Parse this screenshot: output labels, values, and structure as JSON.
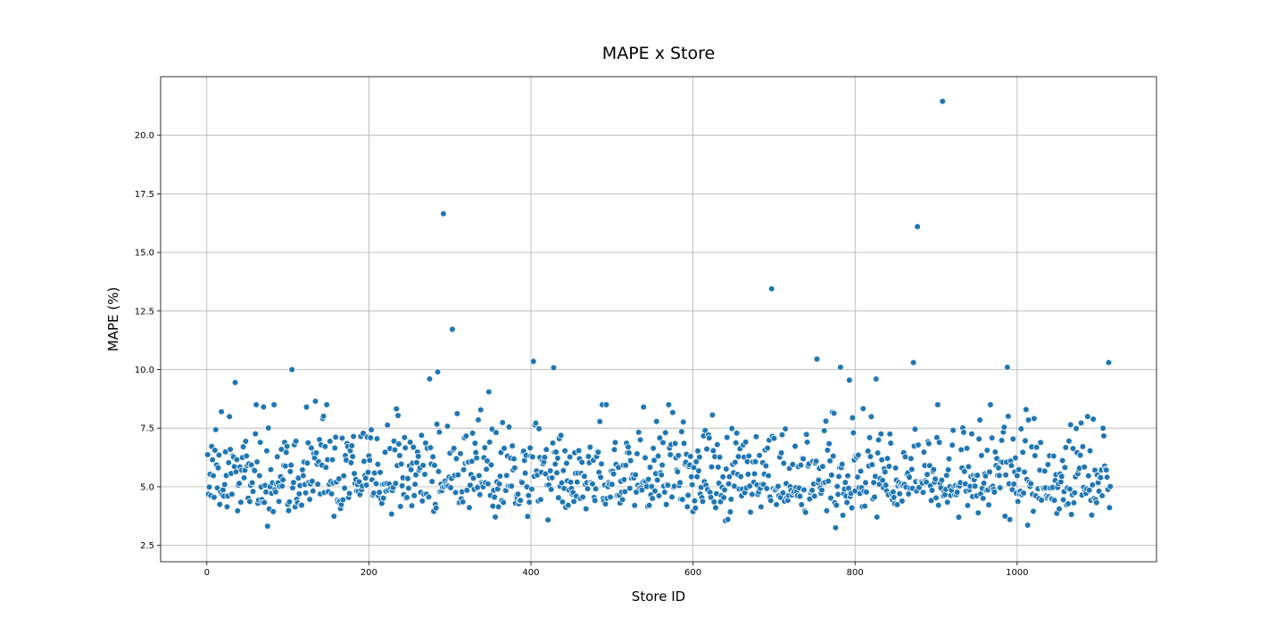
{
  "chart_data": {
    "type": "scatter",
    "title": "MAPE x Store",
    "xlabel": "Store ID",
    "ylabel": "MAPE (%)",
    "xlim": [
      -57,
      1172
    ],
    "ylim": [
      1.8,
      22.5
    ],
    "xticks": [
      0,
      200,
      400,
      600,
      800,
      1000
    ],
    "xtick_labels": [
      "0",
      "200",
      "400",
      "600",
      "800",
      "1000"
    ],
    "yticks": [
      2.5,
      5.0,
      7.5,
      10.0,
      12.5,
      15.0,
      17.5,
      20.0
    ],
    "ytick_labels": [
      "2.5",
      "5.0",
      "7.5",
      "10.0",
      "12.5",
      "15.0",
      "17.5",
      "20.0"
    ],
    "grid": true,
    "point_color": "#1f77b4",
    "n_points": 1115,
    "outliers": {
      "x": [
        292,
        303,
        285,
        275,
        105,
        348,
        403,
        428,
        697,
        753,
        782,
        793,
        826,
        872,
        877,
        908,
        988,
        1113,
        35,
        134,
        123
      ],
      "y": [
        16.65,
        11.72,
        9.9,
        9.6,
        10.0,
        9.05,
        10.35,
        10.08,
        13.45,
        10.45,
        10.1,
        9.55,
        9.6,
        10.3,
        16.1,
        21.45,
        10.1,
        10.3,
        9.45,
        8.65,
        8.4
      ]
    },
    "bulk_distribution": {
      "x_range": [
        1,
        1115
      ],
      "y_min": 2.8,
      "y_max": 8.5,
      "typical_y_center": 5.0
    }
  }
}
